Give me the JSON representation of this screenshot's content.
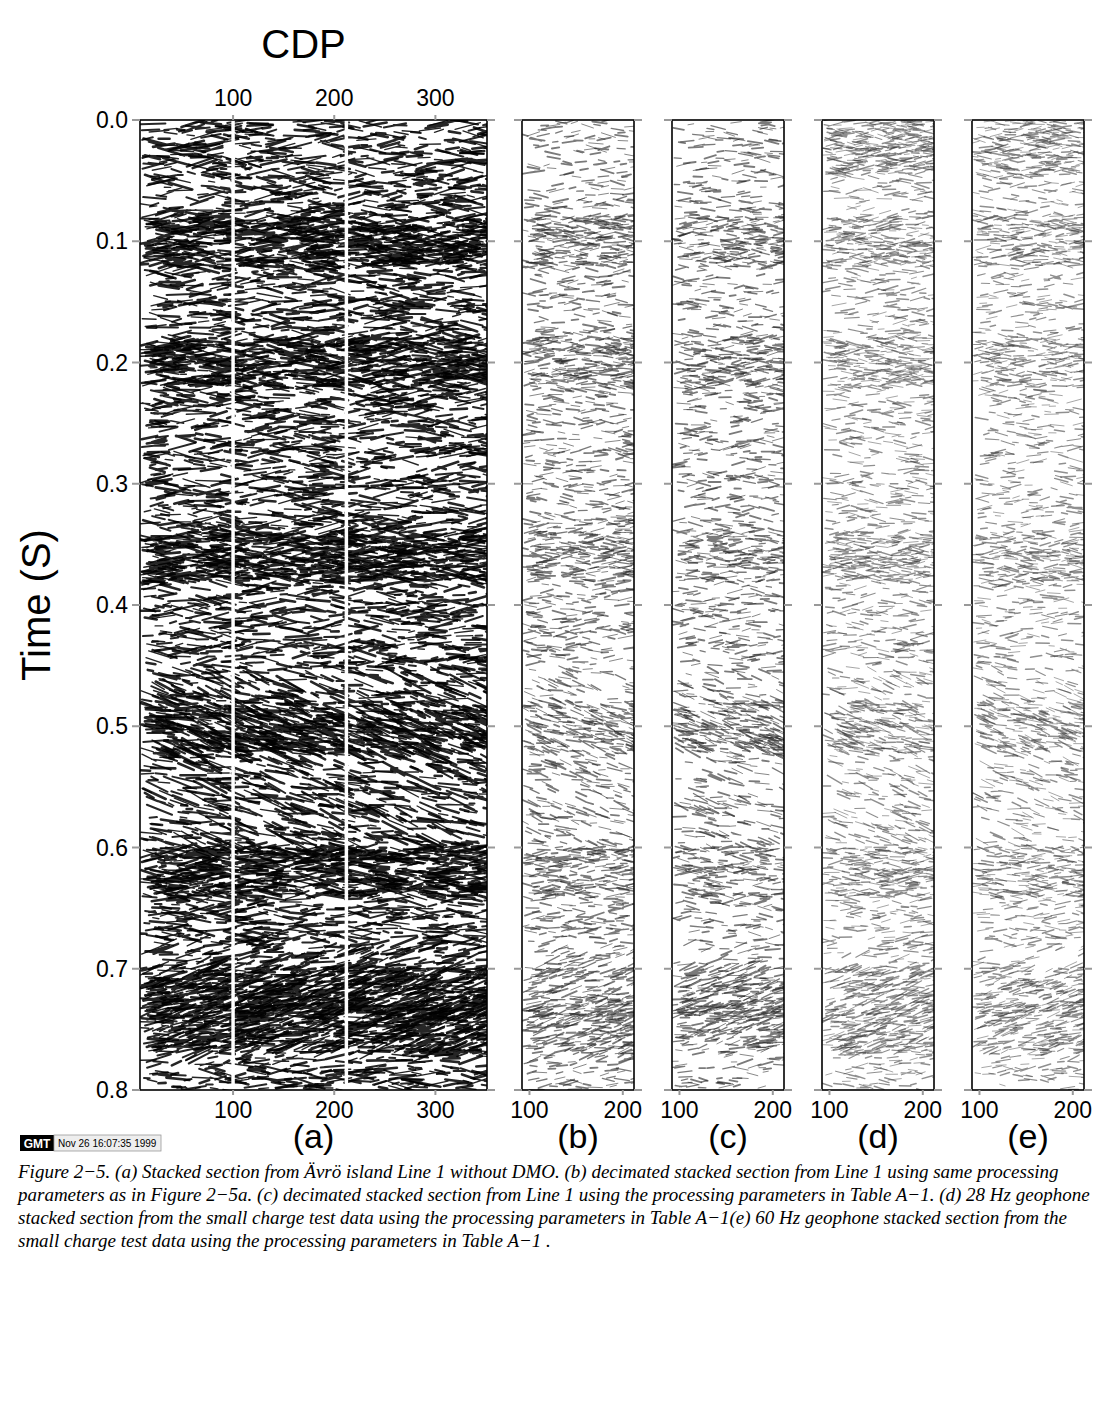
{
  "chart_data": [
    {
      "type": "seismic",
      "title": "(a)",
      "xlim": [
        8,
        351
      ],
      "xticks": [
        100,
        200,
        300
      ],
      "x2label": "CDP",
      "x2ticks": [
        100,
        200,
        300
      ],
      "ylabel": "Time (S)",
      "ylim": [
        0,
        0.8
      ],
      "yticks": [
        {
          "value": 0,
          "label": "0.0"
        },
        0.1,
        0.2,
        0.3,
        0.4,
        0.5,
        0.6,
        0.7,
        0.8
      ],
      "gaps": [
        100,
        212
      ]
    },
    {
      "type": "seismic",
      "title": "(b)",
      "xlim": [
        92,
        212
      ],
      "xticks": [
        100,
        200
      ],
      "ylim": [
        0,
        0.8
      ],
      "yticks": [
        {
          "value": 0,
          "label": "0.0"
        },
        0.1,
        0.2,
        0.3,
        0.4,
        0.5,
        0.6,
        0.7,
        0.8
      ],
      "tick_labels": "x"
    },
    {
      "type": "seismic",
      "title": "(c)",
      "xlim": [
        92,
        212
      ],
      "xticks": [
        100,
        200
      ],
      "ylim": [
        0,
        0.8
      ],
      "yticks": [
        {
          "value": 0,
          "label": "0.0"
        },
        0.1,
        0.2,
        0.3,
        0.4,
        0.5,
        0.6,
        0.7,
        0.8
      ],
      "tick_labels": "x"
    },
    {
      "type": "seismic",
      "title": "(d)",
      "xlim": [
        92,
        212
      ],
      "xticks": [
        100,
        200
      ],
      "ylim": [
        0,
        0.8
      ],
      "yticks": [
        {
          "value": 0,
          "label": "0.0"
        },
        0.1,
        0.2,
        0.3,
        0.4,
        0.5,
        0.6,
        0.7,
        0.8
      ],
      "tick_labels": "x"
    },
    {
      "type": "seismic",
      "title": "(e)",
      "xlim": [
        92,
        212
      ],
      "xticks": [
        100,
        200
      ],
      "ylim": [
        0,
        0.8
      ],
      "yticks": [
        {
          "value": 0,
          "label": "0.0"
        },
        0.1,
        0.2,
        0.3,
        0.4,
        0.5,
        0.6,
        0.7,
        0.8
      ],
      "tick_labels": "x"
    }
  ],
  "stamp": {
    "logo": "GMT",
    "text": "Nov 26 16:07:35 1999"
  },
  "caption": "Figure 2−5. (a) Stacked section from Ävrö island Line 1 without DMO. (b) decimated stacked section from Line 1 using same processing parameters as in Figure 2−5a. (c) decimated stacked section from Line 1 using the processing parameters in Table A−1. (d) 28 Hz geophone stacked section from the small charge test data using the processing parameters in Table A−1(e) 60 Hz geophone stacked section from the small charge test data using the processing parameters in Table A−1 ."
}
